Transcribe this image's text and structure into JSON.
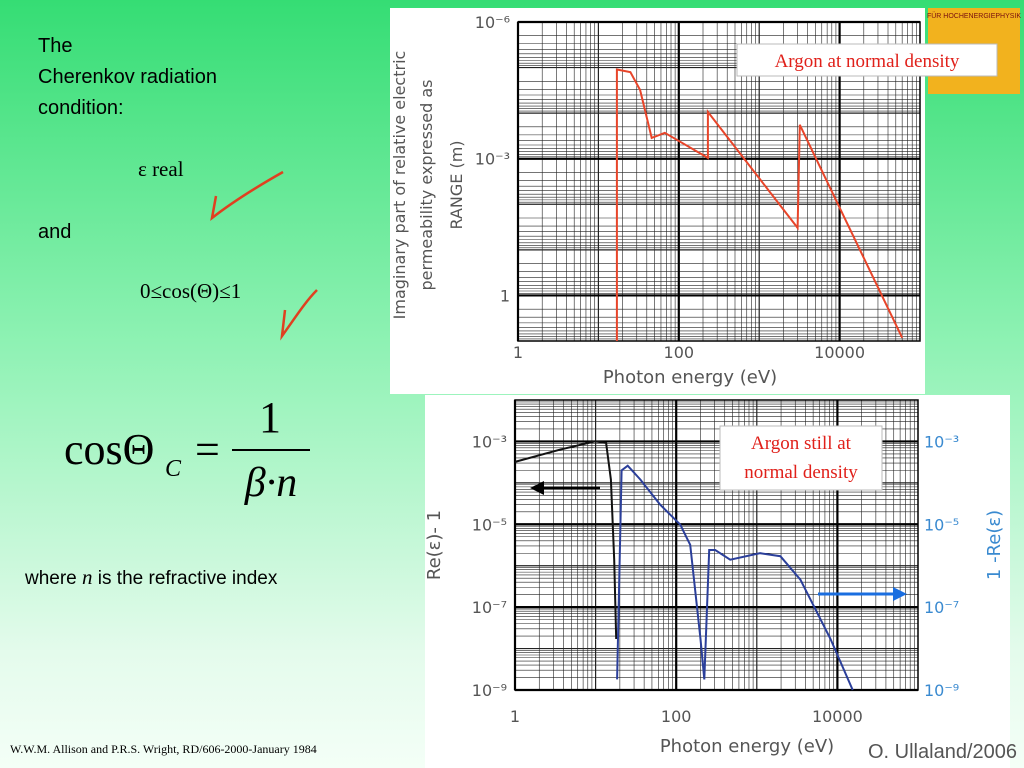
{
  "slide": {
    "heading": [
      "The",
      "Cherenkov radiation",
      "condition:"
    ],
    "condition1": "ε real",
    "conjunction": "and",
    "condition2": "0≤cos(Θ)≤1",
    "formula": {
      "lhs": "cosΘ",
      "subscript": "C",
      "equals": "=",
      "numerator": "1",
      "denominator": "β·n"
    },
    "note": [
      "where ",
      "n",
      " is the refractive index"
    ],
    "reference": "W.W.M. Allison and P.R.S. Wright, RD/606-2000-January 1984",
    "author": "O. Ullaland/2006",
    "logo_text": "FÜR HOCHENERGIEPHYSIK"
  },
  "chart_data": [
    {
      "type": "line",
      "x_label": "Photon energy (eV)",
      "y_label": [
        "Imaginary part of relative electric",
        "permeability expressed as",
        "RANGE (m)"
      ],
      "annotation": [
        "Argon at normal density"
      ],
      "log_x": true,
      "log_y": true,
      "y_inverted": true,
      "grid": true,
      "minor_grid": true,
      "xlim": [
        1,
        100000
      ],
      "xticks": [
        1,
        100,
        10000
      ],
      "ylim": [
        1e-06,
        10
      ],
      "yticks": [
        {
          "value": 1e-06,
          "label": "10⁻⁶"
        },
        {
          "value": 0.001,
          "label": "10⁻³"
        },
        1
      ],
      "series": [
        {
          "color": "#e8452a",
          "x": [
            17,
            17,
            25,
            33,
            46,
            67,
            230,
            230,
            3000,
            3200,
            9000,
            60000
          ],
          "values": [
            10,
            1.1e-05,
            1.26e-05,
            3.1e-05,
            0.00035,
            0.00027,
            0.00096,
            9.4e-05,
            0.033,
            0.00018,
            0.008,
            8.5
          ]
        }
      ]
    },
    {
      "type": "line",
      "x_label": "Photon energy (eV)",
      "y_label": "Re(ε)- 1",
      "y2_label": "1 -Re(ε)",
      "y2_color": "#3a8ad0",
      "annotation": [
        "Argon still at",
        "normal density"
      ],
      "log_x": true,
      "log_y": true,
      "grid": true,
      "minor_grid": true,
      "xlim": [
        1,
        100000
      ],
      "xticks": [
        1,
        100,
        10000
      ],
      "ylim": [
        1e-09,
        0.01
      ],
      "yticks": [
        {
          "value": 0.001,
          "label": "10⁻³"
        },
        {
          "value": 1e-05,
          "label": "10⁻⁵"
        },
        {
          "value": 1e-07,
          "label": "10⁻⁷"
        },
        {
          "value": 1e-09,
          "label": "10⁻⁹"
        }
      ],
      "y2lim": [
        1e-09,
        0.01
      ],
      "y2ticks": [
        {
          "value": 0.001,
          "label": "10⁻³"
        },
        {
          "value": 1e-05,
          "label": "10⁻⁵"
        },
        {
          "value": 1e-07,
          "label": "10⁻⁷"
        },
        {
          "value": 1e-09,
          "label": "10⁻⁹"
        }
      ],
      "series": [
        {
          "color": "#111111",
          "axis": "y",
          "x": [
            1,
            3.6,
            9.8,
            13.5,
            15.5,
            17,
            18
          ],
          "values": [
            0.00032,
            0.00063,
            0.001,
            0.00092,
            0.00012,
            1.4e-06,
            1.7e-08
          ]
        },
        {
          "color": "#2b3f9a",
          "axis": "y2",
          "x": [
            18.5,
            21,
            25,
            36,
            63,
            112,
            149,
            200,
            223,
            257,
            305,
            468,
            1100,
            1960,
            3470,
            8200,
            15500
          ],
          "values": [
            1.8e-09,
            0.0002,
            0.00026,
            0.00012,
            3e-05,
            9.8e-06,
            3.2e-06,
            1.7e-08,
            1.8e-09,
            2.4e-06,
            2.4e-06,
            1.4e-06,
            2e-06,
            1.7e-06,
            4.6e-07,
            1.7e-08,
            1e-09
          ]
        }
      ]
    }
  ]
}
